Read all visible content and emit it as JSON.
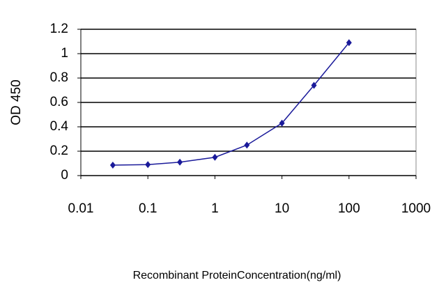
{
  "chart_data": {
    "type": "line",
    "x_label": "Recombinant ProteinConcentration(ng/ml)",
    "y_label": "OD 450",
    "x": [
      0.03,
      0.1,
      0.3,
      1,
      3,
      10,
      30,
      100
    ],
    "series": [
      {
        "name": "OD",
        "color": "#1a1a9a",
        "values": [
          0.086,
          0.09,
          0.11,
          0.15,
          0.25,
          0.43,
          0.74,
          1.09
        ]
      }
    ],
    "xscale": "log",
    "xlim": [
      0.01,
      1000
    ],
    "xticks": [
      0.01,
      0.1,
      1,
      10,
      100,
      1000
    ],
    "ylim": [
      0,
      1.2
    ],
    "yticks": [
      0,
      0.2,
      0.4,
      0.6,
      0.8,
      1,
      1.2
    ],
    "grid": true
  }
}
